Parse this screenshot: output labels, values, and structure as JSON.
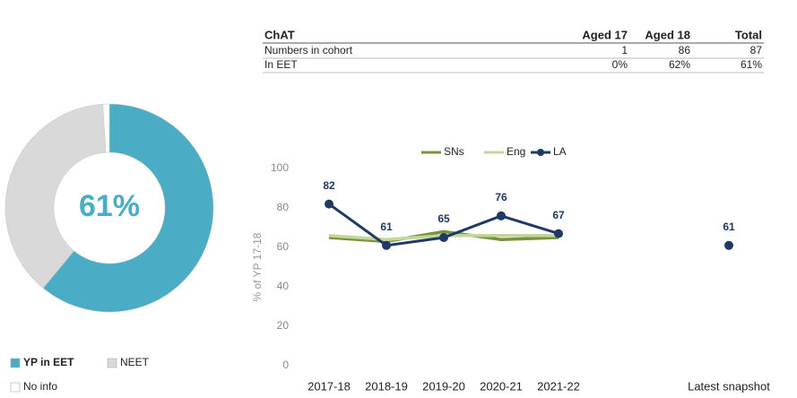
{
  "table": {
    "header": [
      "ChAT",
      "Aged 17",
      "Aged 18",
      "Total"
    ],
    "rows": [
      [
        "Numbers in cohort",
        "1",
        "86",
        "87"
      ],
      [
        "In EET",
        "0%",
        "62%",
        "61%"
      ]
    ]
  },
  "chart_data": [
    {
      "type": "pie",
      "donut": true,
      "center_label": "61%",
      "categories": [
        "YP in EET",
        "NEET",
        "No info"
      ],
      "values": [
        61,
        38,
        1
      ],
      "colors": [
        "#4bacc6",
        "#d9d9d9",
        "#ffffff"
      ]
    },
    {
      "type": "line",
      "y_label": "% of YP 17-18",
      "categories": [
        "2017-18",
        "2018-19",
        "2019-20",
        "2020-21",
        "2021-22",
        null,
        "Latest snapshot"
      ],
      "series": [
        {
          "name": "SNs",
          "color": "#77933c",
          "values": [
            65,
            63,
            68,
            64,
            65,
            null,
            null
          ]
        },
        {
          "name": "Eng",
          "color": "#c3d69b",
          "values": [
            66,
            64,
            66,
            66,
            66,
            null,
            null
          ]
        },
        {
          "name": "LA",
          "color": "#1f3864",
          "values": [
            82,
            61,
            65,
            76,
            67,
            null,
            61
          ],
          "markers": true,
          "data_labels": true
        }
      ],
      "ylim": [
        0,
        100
      ],
      "yticks": [
        0,
        20,
        40,
        60,
        80,
        100
      ],
      "grid": false,
      "legend": "top"
    }
  ]
}
